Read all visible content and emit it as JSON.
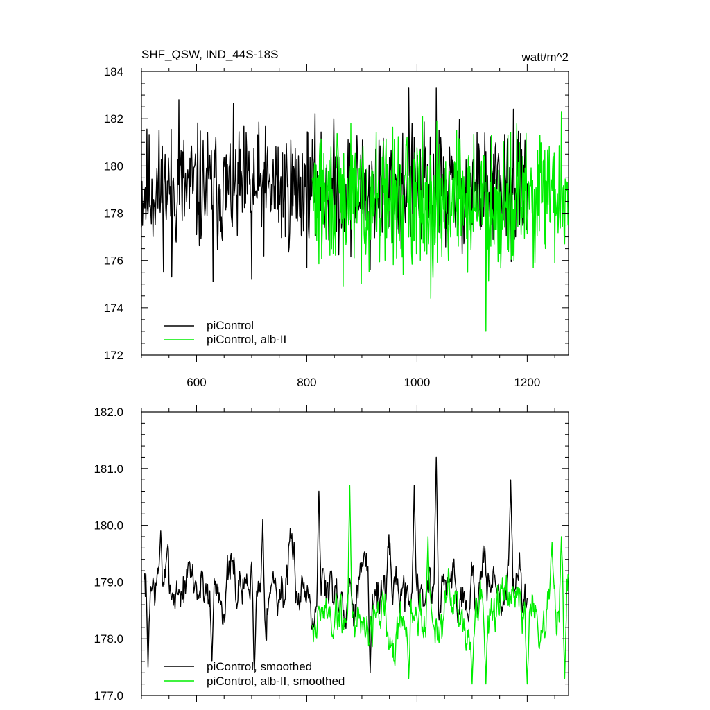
{
  "chart_data": [
    {
      "type": "line",
      "title": "SHF_QSW, IND_44S-18S",
      "units": "watt/m^2",
      "xlim": [
        500,
        1275
      ],
      "ylim": [
        172,
        184
      ],
      "x_ticks": [
        600,
        800,
        1000,
        1200
      ],
      "y_ticks": [
        172,
        174,
        176,
        178,
        180,
        182,
        184
      ],
      "y_tick_labels": [
        "172",
        "174",
        "176",
        "178",
        "180",
        "182",
        "184"
      ],
      "legend_position": "bottom-left",
      "series": [
        {
          "name": "piControl",
          "color": "#000000",
          "x_start": 500,
          "x_end": 1200,
          "mean": 179.0,
          "amplitude": 1.5,
          "seed": 11,
          "peaks": [
            [
              568,
              182.8
            ],
            [
              985,
              183.3
            ],
            [
              1035,
              183.3
            ],
            [
              1175,
              182.4
            ]
          ],
          "troughs": [
            [
              555,
              175.3
            ],
            [
              630,
              175.1
            ],
            [
              700,
              175.2
            ],
            [
              915,
              175.6
            ]
          ]
        },
        {
          "name": "piControl, alb-II",
          "color": "#00ee00",
          "x_start": 810,
          "x_end": 1275,
          "mean": 178.6,
          "amplitude": 1.6,
          "seed": 29,
          "peaks": [
            [
              880,
              181.8
            ],
            [
              1010,
              182.1
            ],
            [
              1262,
              182.3
            ]
          ],
          "troughs": [
            [
              866,
              174.9
            ],
            [
              1025,
              174.4
            ],
            [
              1125,
              173.0
            ],
            [
              1250,
              175.9
            ]
          ]
        }
      ]
    },
    {
      "type": "line",
      "xlim": [
        500,
        1275
      ],
      "ylim": [
        177.0,
        182.0
      ],
      "x_ticks": [
        600,
        800,
        1000,
        1200
      ],
      "y_ticks": [
        177,
        178,
        179,
        180,
        181,
        182
      ],
      "y_tick_labels": [
        "177.0",
        "178.0",
        "179.0",
        "180.0",
        "181.0",
        "182.0"
      ],
      "legend_position": "bottom-left",
      "series": [
        {
          "name": "piControl, smoothed",
          "color": "#000000",
          "x_start": 505,
          "x_end": 1200,
          "mean": 178.95,
          "amplitude": 0.45,
          "seed": 7,
          "peaks": [
            [
              535,
              179.9
            ],
            [
              720,
              180.1
            ],
            [
              822,
              180.6
            ],
            [
              995,
              180.7
            ],
            [
              1035,
              181.2
            ],
            [
              1170,
              180.8
            ]
          ],
          "troughs": [
            [
              512,
              177.5
            ],
            [
              628,
              177.6
            ],
            [
              705,
              177.4
            ],
            [
              915,
              177.4
            ]
          ]
        },
        {
          "name": "piControl, alb-II, smoothed",
          "color": "#00ee00",
          "x_start": 810,
          "x_end": 1275,
          "mean": 178.4,
          "amplitude": 0.45,
          "seed": 19,
          "peaks": [
            [
              878,
              180.7
            ],
            [
              1020,
              179.8
            ],
            [
              1245,
              179.7
            ],
            [
              1262,
              179.8
            ]
          ],
          "troughs": [
            [
              985,
              177.3
            ],
            [
              1100,
              177.2
            ],
            [
              1125,
              177.2
            ],
            [
              1200,
              177.2
            ],
            [
              1268,
              177.3
            ]
          ]
        }
      ]
    }
  ]
}
